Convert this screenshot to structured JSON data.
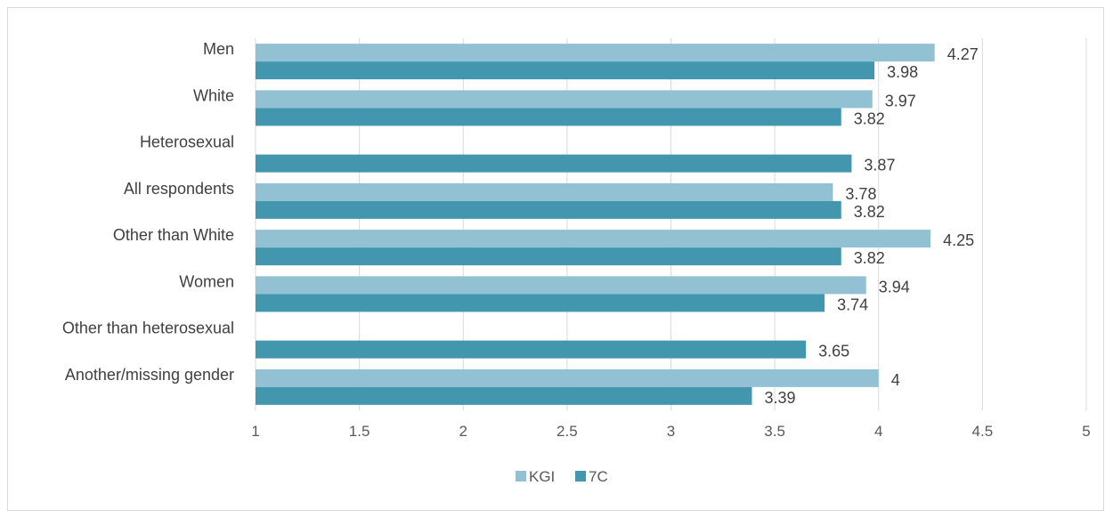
{
  "chart_data": {
    "type": "bar",
    "orientation": "horizontal",
    "title": "",
    "xlabel": "",
    "ylabel": "",
    "categories": [
      "Men",
      "White",
      "Heterosexual",
      "All respondents",
      "Other than White",
      "Women",
      "Other than heterosexual",
      "Another/missing gender"
    ],
    "series": [
      {
        "name": "KGI",
        "color": "#92c1d4",
        "values": [
          4.27,
          3.97,
          null,
          3.78,
          4.25,
          3.94,
          null,
          4
        ]
      },
      {
        "name": "7C",
        "color": "#4297ae",
        "values": [
          3.98,
          3.82,
          3.87,
          3.82,
          3.82,
          3.74,
          3.65,
          3.39
        ]
      }
    ],
    "xlim": [
      1,
      5
    ],
    "xticks": [
      "1",
      "1.5",
      "2",
      "2.5",
      "3",
      "3.5",
      "4",
      "4.5",
      "5"
    ],
    "grid": "vertical",
    "legend": "bottom-center"
  }
}
